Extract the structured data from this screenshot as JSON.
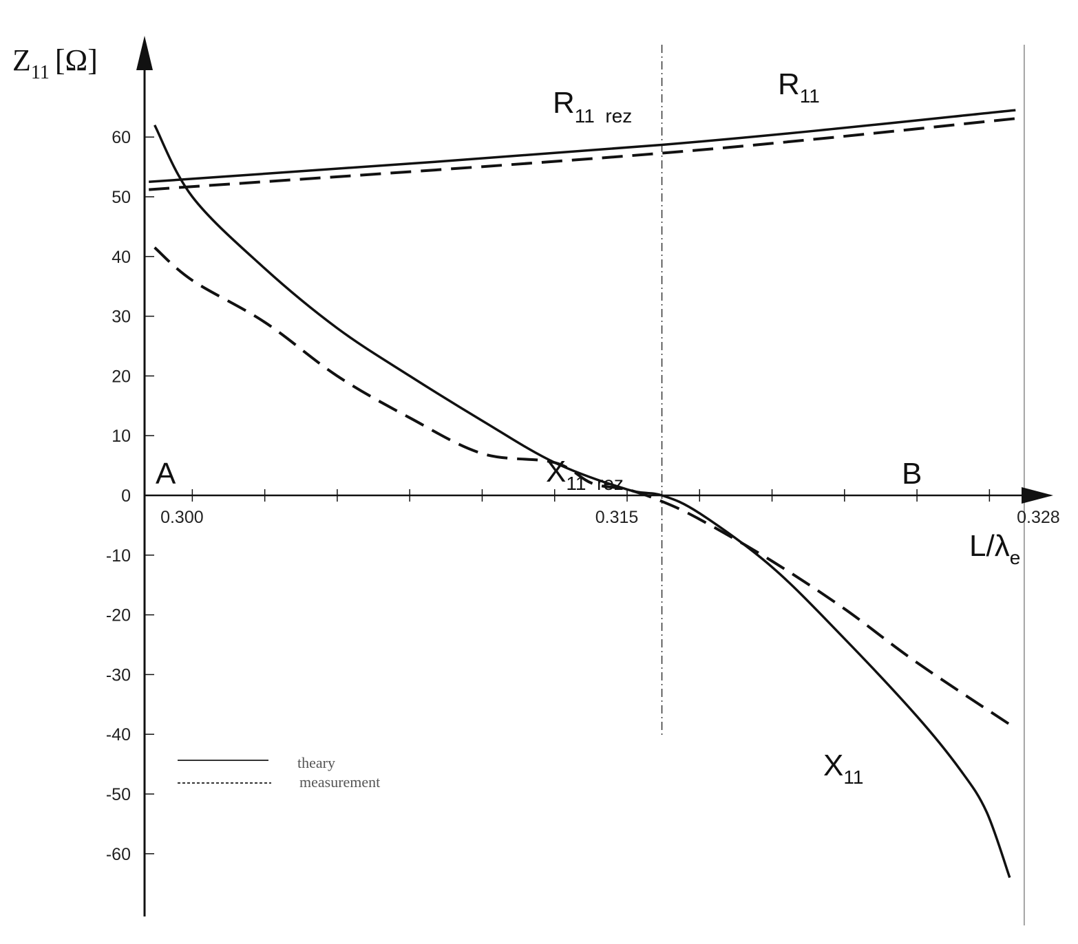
{
  "chart_data": {
    "type": "line",
    "title": "",
    "ylabel": {
      "main": "Z",
      "sub": "11",
      "unit": "[Ω]"
    },
    "xlabel": {
      "main": "L/λ",
      "sub": "e"
    },
    "xlim": [
      0.2984,
      0.3297
    ],
    "ylim": [
      -70,
      70
    ],
    "x_tick_labels": [
      {
        "x": 0.3,
        "label": "0.300"
      },
      {
        "x": 0.315,
        "label": "0.315"
      },
      {
        "x": 0.328,
        "label": "0.328"
      }
    ],
    "x_minor_ticks": [
      0.3,
      0.3025,
      0.305,
      0.3075,
      0.31,
      0.3125,
      0.315,
      0.3175,
      0.32,
      0.3225,
      0.325,
      0.3275
    ],
    "y_ticks": [
      -60,
      -50,
      -40,
      -30,
      -20,
      -10,
      0,
      10,
      20,
      30,
      40,
      50,
      60
    ],
    "y_tick_labels": [
      "-60",
      "-50",
      "-40",
      "-30",
      "-20",
      "-10",
      "0",
      "10",
      "20",
      "30",
      "40",
      "50",
      "60"
    ],
    "annotations": {
      "point_a": "A",
      "point_b": "B",
      "r11": {
        "main": "R",
        "sub": "11"
      },
      "r11_rez": {
        "main": "R",
        "sub": "11  rez"
      },
      "x11": {
        "main": "X",
        "sub": "11"
      },
      "x11_rez": {
        "main": "X",
        "sub": "11  rez"
      }
    },
    "resonance_x": 0.3162,
    "boundary_x": 0.3287,
    "legend": {
      "position": "bottom-left",
      "entries": [
        {
          "label": "theary",
          "style": "solid"
        },
        {
          "label": "measurement",
          "style": "dotted"
        }
      ]
    },
    "series": [
      {
        "name": "R11 theory",
        "style": "solid",
        "x": [
          0.2985,
          0.3162,
          0.3284
        ],
        "y": [
          52.5,
          58.7,
          64.5
        ]
      },
      {
        "name": "R11 measurement",
        "style": "dashed",
        "x": [
          0.2985,
          0.3162,
          0.3284
        ],
        "y": [
          51.2,
          57.3,
          63.1
        ]
      },
      {
        "name": "X11 theory",
        "style": "solid",
        "x": [
          0.2987,
          0.3,
          0.3025,
          0.305,
          0.3075,
          0.31,
          0.3125,
          0.315,
          0.3162,
          0.3175,
          0.32,
          0.3225,
          0.325,
          0.3265,
          0.3274,
          0.3282
        ],
        "y": [
          62,
          50,
          38,
          28,
          20,
          12.5,
          5.5,
          1,
          0,
          -3,
          -12,
          -24,
          -37,
          -46,
          -53,
          -64
        ]
      },
      {
        "name": "X11 measurement",
        "style": "dashed",
        "x": [
          0.2987,
          0.3,
          0.3025,
          0.305,
          0.3075,
          0.31,
          0.3125,
          0.3138,
          0.315,
          0.3162,
          0.3175,
          0.32,
          0.3225,
          0.325,
          0.3284
        ],
        "y": [
          41.5,
          36,
          29,
          20,
          13,
          7,
          5.5,
          2,
          1,
          -1,
          -4,
          -11,
          -19,
          -28,
          -39
        ]
      }
    ]
  }
}
